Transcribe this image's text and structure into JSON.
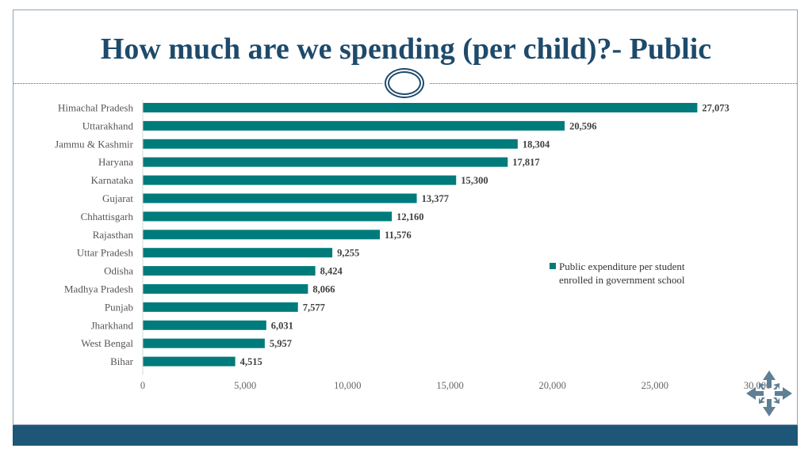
{
  "slide": {
    "title": "How much are we spending (per child)?- Public"
  },
  "colors": {
    "title": "#1e4a6b",
    "bar": "#007b7b",
    "footer": "#1e5678",
    "frame": "#8fa5ba"
  },
  "legend": {
    "line1": "Public expenditure per student",
    "line2": "enrolled in government school"
  },
  "icons": {
    "move": "move-arrows-icon"
  },
  "chart_data": {
    "type": "bar",
    "orientation": "horizontal",
    "title": "",
    "xlabel": "",
    "ylabel": "",
    "categories": [
      "Himachal Pradesh",
      "Uttarakhand",
      "Jammu & Kashmir",
      "Haryana",
      "Karnataka",
      "Gujarat",
      "Chhattisgarh",
      "Rajasthan",
      "Uttar Pradesh",
      "Odisha",
      "Madhya Pradesh",
      "Punjab",
      "Jharkhand",
      "West Bengal",
      "Bihar"
    ],
    "series": [
      {
        "name": "Public expenditure per student enrolled in government school",
        "values": [
          27073,
          20596,
          18304,
          17817,
          15300,
          13377,
          12160,
          11576,
          9255,
          8424,
          8066,
          7577,
          6031,
          5957,
          4515
        ],
        "labels": [
          "27,073",
          "20,596",
          "18,304",
          "17,817",
          "15,300",
          "13,377",
          "12,160",
          "11,576",
          "9,255",
          "8,424",
          "8,066",
          "7,577",
          "6,031",
          "5,957",
          "4,515"
        ]
      }
    ],
    "xlim": [
      0,
      30000
    ],
    "xticks": [
      0,
      5000,
      10000,
      15000,
      20000,
      25000,
      30000
    ],
    "xtick_labels": [
      "0",
      "5,000",
      "10,000",
      "15,000",
      "20,000",
      "25,000",
      "30,000"
    ],
    "grid": false,
    "legend_position": "right"
  }
}
